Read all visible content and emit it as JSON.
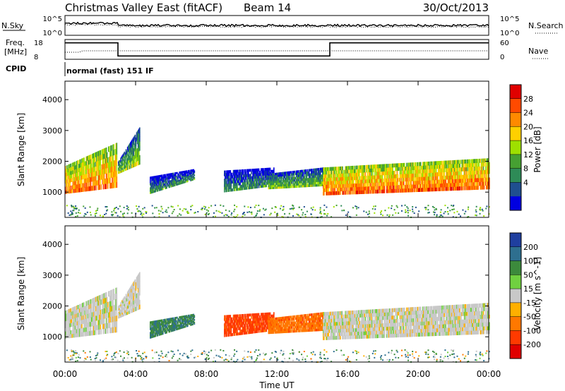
{
  "header": {
    "title": "Christmas Valley East (fitACF)",
    "beam": "Beam 14",
    "date": "30/Oct/2013"
  },
  "meta": {
    "nsky_label": "N.Sky",
    "nsearch_label": "N.Search",
    "freq_label_1": "Freq.",
    "freq_label_2": "[MHz]",
    "nave_label": "Nave",
    "cpid_label": "CPID",
    "cpid_value": "normal (fast) 151 IF",
    "noise_ticks": [
      "10^5",
      "10^0"
    ],
    "freq_ticks": [
      "18",
      "8"
    ],
    "nave_ticks": [
      "60",
      "0"
    ]
  },
  "xaxis": {
    "label": "Time UT",
    "ticks": [
      "00:00",
      "04:00",
      "08:00",
      "12:00",
      "16:00",
      "20:00",
      "00:00"
    ]
  },
  "power_colorbar": {
    "label": "Power [dB]",
    "ticks": [
      "28",
      "24",
      "20",
      "16",
      "12",
      "8",
      "4"
    ],
    "colors": [
      "#e00000",
      "#ff4a00",
      "#ff8a00",
      "#ffd000",
      "#9ee000",
      "#46a032",
      "#2e8b57",
      "#1f4f8f",
      "#0000e0"
    ]
  },
  "velocity_colorbar": {
    "label": "Velocity [m s^-1]",
    "ticks": [
      "200",
      "100",
      "50",
      "15",
      "-15",
      "-50",
      "-100",
      "-200"
    ],
    "colors": [
      "#1f3f9f",
      "#2e6f8f",
      "#3c8a3c",
      "#70d040",
      "#c8c8c8",
      "#ffb000",
      "#ff7800",
      "#ff3a00",
      "#e00000"
    ]
  },
  "chart_data": [
    {
      "type": "heatmap",
      "title": "Power",
      "xlabel": "Time UT",
      "ylabel": "Slant Range [km]",
      "xlim": [
        0,
        24
      ],
      "ylim": [
        180,
        4600
      ],
      "yticks": [
        1000,
        2000,
        3000,
        4000
      ],
      "clim": [
        0,
        32
      ],
      "scatter_regions": [
        {
          "t": [
            0.0,
            2.9
          ],
          "r_lo": [
            950,
            1150
          ],
          "r_hi": [
            1850,
            2600
          ],
          "value": 26
        },
        {
          "t": [
            3.0,
            4.2
          ],
          "r_lo": [
            1600,
            1900
          ],
          "r_hi": [
            2000,
            3100
          ],
          "value": 16
        },
        {
          "t": [
            4.8,
            7.3
          ],
          "r_lo": [
            950,
            1400
          ],
          "r_hi": [
            1500,
            1750
          ],
          "value": 10
        },
        {
          "t": [
            9.0,
            11.8
          ],
          "r_lo": [
            1000,
            1200
          ],
          "r_hi": [
            1700,
            1800
          ],
          "value": 10
        },
        {
          "t": [
            11.5,
            14.6
          ],
          "r_lo": [
            1100,
            1200
          ],
          "r_hi": [
            1600,
            1800
          ],
          "value": 14
        },
        {
          "t": [
            14.6,
            24.0
          ],
          "r_lo": [
            900,
            1100
          ],
          "r_hi": [
            1800,
            2100
          ],
          "value": 27
        }
      ],
      "near_range_band": {
        "t": [
          0.0,
          24.0
        ],
        "r": [
          200,
          600
        ],
        "value": 10
      }
    },
    {
      "type": "heatmap",
      "title": "Velocity",
      "xlabel": "Time UT",
      "ylabel": "Slant Range [km]",
      "xlim": [
        0,
        24
      ],
      "ylim": [
        180,
        4600
      ],
      "yticks": [
        1000,
        2000,
        3000,
        4000
      ],
      "clim": [
        -250,
        250
      ],
      "scatter_regions": [
        {
          "t": [
            0.0,
            2.9
          ],
          "r_lo": [
            950,
            1150
          ],
          "r_hi": [
            1850,
            2600
          ],
          "value": 0
        },
        {
          "t": [
            3.0,
            4.2
          ],
          "r_lo": [
            1600,
            1900
          ],
          "r_hi": [
            2000,
            3100
          ],
          "value": 0
        },
        {
          "t": [
            4.8,
            7.3
          ],
          "r_lo": [
            950,
            1400
          ],
          "r_hi": [
            1500,
            1750
          ],
          "value": 70
        },
        {
          "t": [
            9.0,
            11.8
          ],
          "r_lo": [
            1000,
            1200
          ],
          "r_hi": [
            1700,
            1800
          ],
          "value": -90
        },
        {
          "t": [
            11.5,
            14.6
          ],
          "r_lo": [
            1100,
            1200
          ],
          "r_hi": [
            1600,
            1800
          ],
          "value": -60
        },
        {
          "t": [
            14.6,
            24.0
          ],
          "r_lo": [
            900,
            1100
          ],
          "r_hi": [
            1800,
            2100
          ],
          "value": 0
        }
      ],
      "near_range_band": {
        "t": [
          0.0,
          24.0
        ],
        "r": [
          200,
          600
        ],
        "value": 40
      }
    },
    {
      "type": "line",
      "title": "Freq.",
      "x": [
        0,
        3,
        3,
        15,
        15,
        24
      ],
      "y": [
        16,
        16,
        8,
        8,
        16,
        16
      ],
      "ylim": [
        6,
        18
      ]
    }
  ]
}
